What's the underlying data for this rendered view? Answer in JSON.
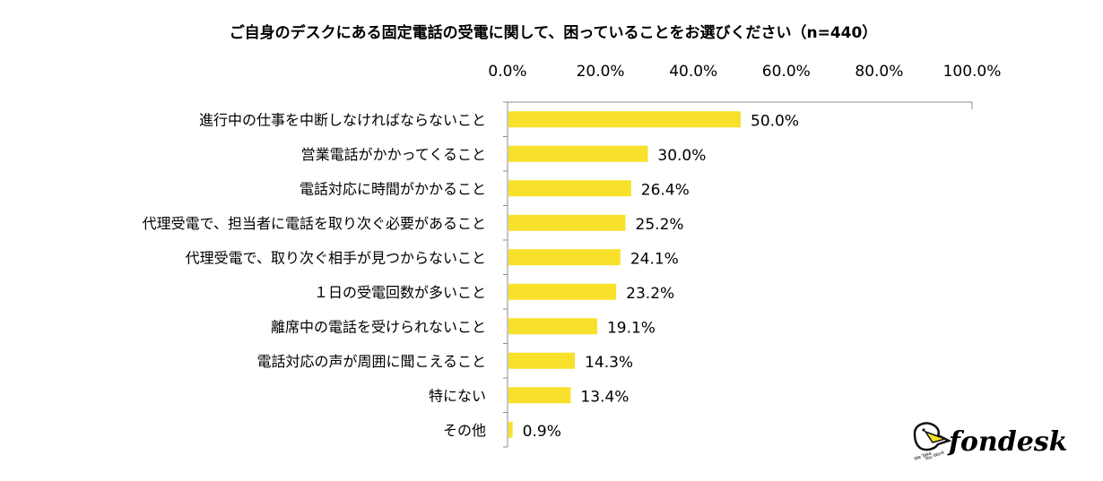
{
  "chart_data": {
    "type": "bar",
    "orientation": "horizontal",
    "title": "ご自身のデスクにある固定電話の受電に関して、困っていることをお選びください（n=440）",
    "xlim": [
      0,
      100
    ],
    "x_ticks": [
      "0.0%",
      "20.0%",
      "40.0%",
      "60.0%",
      "80.0%",
      "100.0%"
    ],
    "categories": [
      "進行中の仕事を中断しなければならないこと",
      "営業電話がかかってくること",
      "電話対応に時間がかかること",
      "代理受電で、担当者に電話を取り次ぐ必要があること",
      "代理受電で、取り次ぐ相手が見つからないこと",
      "１日の受電回数が多いこと",
      "離席中の電話を受けられないこと",
      "電話対応の声が周囲に聞こえること",
      "特にない",
      "その他"
    ],
    "values": [
      50.0,
      30.0,
      26.4,
      25.2,
      24.1,
      23.2,
      19.1,
      14.3,
      13.4,
      0.9
    ],
    "value_labels": [
      "50.0%",
      "30.0%",
      "26.4%",
      "25.2%",
      "24.1%",
      "23.2%",
      "19.1%",
      "14.3%",
      "13.4%",
      "0.9%"
    ],
    "bar_color": "#f7e12b",
    "axis_color": "#8c8c8c",
    "grid": false,
    "legend": "none"
  },
  "logo": {
    "text": "fondesk",
    "tagline_1": "We Take",
    "tagline_2": "You Work",
    "icon": "pelican-icon"
  }
}
